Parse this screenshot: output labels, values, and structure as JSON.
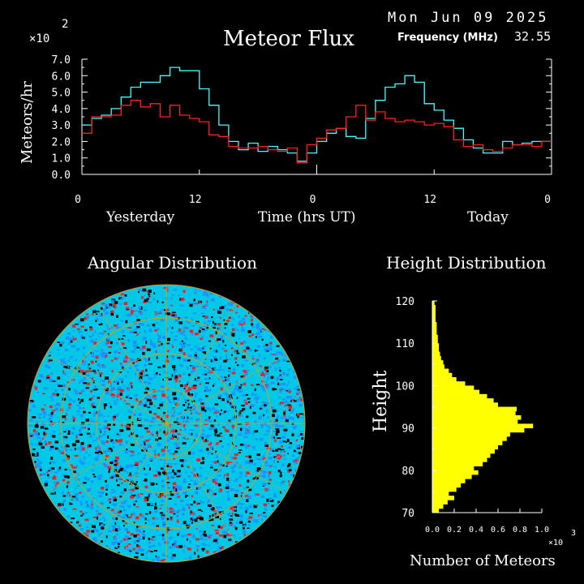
{
  "header": {
    "date": "Mon Jun 09 2025",
    "title": "Meteor Flux",
    "frequency_label": "Frequency (MHz)",
    "frequency_value": "32.55",
    "exponent_base": "×10",
    "exponent_power": "2"
  },
  "colors": {
    "background": "#000000",
    "axis": "#ffffff",
    "series_cyan": "#40ffff",
    "series_red": "#ff2020",
    "histogram": "#ffff00",
    "disc_cyan": "#00c8e6",
    "disc_blue": "#1e90ff",
    "disc_red": "#ff1a1a",
    "disc_grid": "#d4a017"
  },
  "chart_data": [
    {
      "type": "line",
      "title": "Meteor Flux",
      "ylabel": "Meteors/hr",
      "xlabel": "Time (hrs UT)",
      "ylim": [
        0,
        7
      ],
      "yticks": [
        "0.0",
        "1.0",
        "2.0",
        "3.0",
        "4.0",
        "5.0",
        "6.0",
        "7.0"
      ],
      "xticks": [
        "0",
        "12",
        "0",
        "12",
        "0"
      ],
      "xlim": [
        0,
        48
      ],
      "xtick_positions": [
        0,
        12,
        24,
        36,
        48
      ],
      "day_labels": [
        "Yesterday",
        "Today"
      ],
      "step": true,
      "series": [
        {
          "color": "cyan",
          "values": [
            3.0,
            3.4,
            3.6,
            4.0,
            4.7,
            5.3,
            5.6,
            5.6,
            6.0,
            6.5,
            6.3,
            6.3,
            5.2,
            4.2,
            3.0,
            2.0,
            1.5,
            1.9,
            1.4,
            1.7,
            1.5,
            1.3,
            0.8,
            1.3,
            2.0,
            2.5,
            2.8,
            2.3,
            2.2,
            3.4,
            4.5,
            5.3,
            5.5,
            6.0,
            5.6,
            4.3,
            3.9,
            3.3,
            2.8,
            2.1,
            1.6,
            1.3,
            1.3,
            2.0,
            1.8,
            1.9,
            2.0,
            2.0
          ]
        },
        {
          "color": "red",
          "values": [
            2.5,
            3.5,
            3.5,
            3.6,
            4.2,
            4.5,
            4.1,
            4.3,
            3.5,
            4.2,
            3.6,
            3.4,
            3.2,
            2.4,
            2.3,
            1.7,
            1.6,
            1.6,
            1.7,
            1.5,
            1.4,
            1.6,
            0.7,
            1.8,
            2.2,
            2.7,
            2.8,
            3.5,
            4.2,
            3.3,
            3.8,
            3.4,
            3.2,
            3.3,
            3.2,
            3.0,
            3.1,
            2.9,
            2.1,
            1.7,
            1.8,
            1.5,
            1.4,
            1.6,
            1.8,
            1.8,
            1.7,
            2.0
          ]
        }
      ]
    },
    {
      "type": "scatter",
      "title": "Angular Distribution",
      "description_class": "polar density map"
    },
    {
      "type": "bar",
      "orientation": "horizontal",
      "title": "Height Distribution",
      "ylabel": "Height",
      "xlabel": "Number of Meteors",
      "exponent_base": "×10",
      "exponent_power": "3",
      "ylim": [
        70,
        120
      ],
      "yticks": [
        "120",
        "110",
        "100",
        "90",
        "80",
        "70"
      ],
      "xlim": [
        0,
        1.0
      ],
      "xticks": [
        "0.0",
        "0.2",
        "0.4",
        "0.6",
        "0.8",
        "1.0"
      ],
      "heights": [
        70,
        71,
        72,
        73,
        74,
        75,
        76,
        77,
        78,
        79,
        80,
        81,
        82,
        83,
        84,
        85,
        86,
        87,
        88,
        89,
        90,
        91,
        92,
        93,
        94,
        95,
        96,
        97,
        98,
        99,
        100,
        101,
        102,
        103,
        104,
        105,
        106,
        107,
        108,
        109,
        110,
        111,
        112,
        113,
        114,
        115,
        116,
        117,
        118,
        119
      ],
      "values": [
        0.06,
        0.1,
        0.14,
        0.2,
        0.15,
        0.22,
        0.26,
        0.3,
        0.36,
        0.42,
        0.38,
        0.46,
        0.5,
        0.53,
        0.57,
        0.6,
        0.64,
        0.68,
        0.71,
        0.84,
        0.92,
        0.78,
        0.81,
        0.76,
        0.77,
        0.6,
        0.56,
        0.5,
        0.43,
        0.38,
        0.3,
        0.22,
        0.18,
        0.15,
        0.11,
        0.1,
        0.08,
        0.07,
        0.06,
        0.06,
        0.05,
        0.05,
        0.04,
        0.04,
        0.04,
        0.03,
        0.03,
        0.03,
        0.03,
        0.02
      ]
    }
  ]
}
